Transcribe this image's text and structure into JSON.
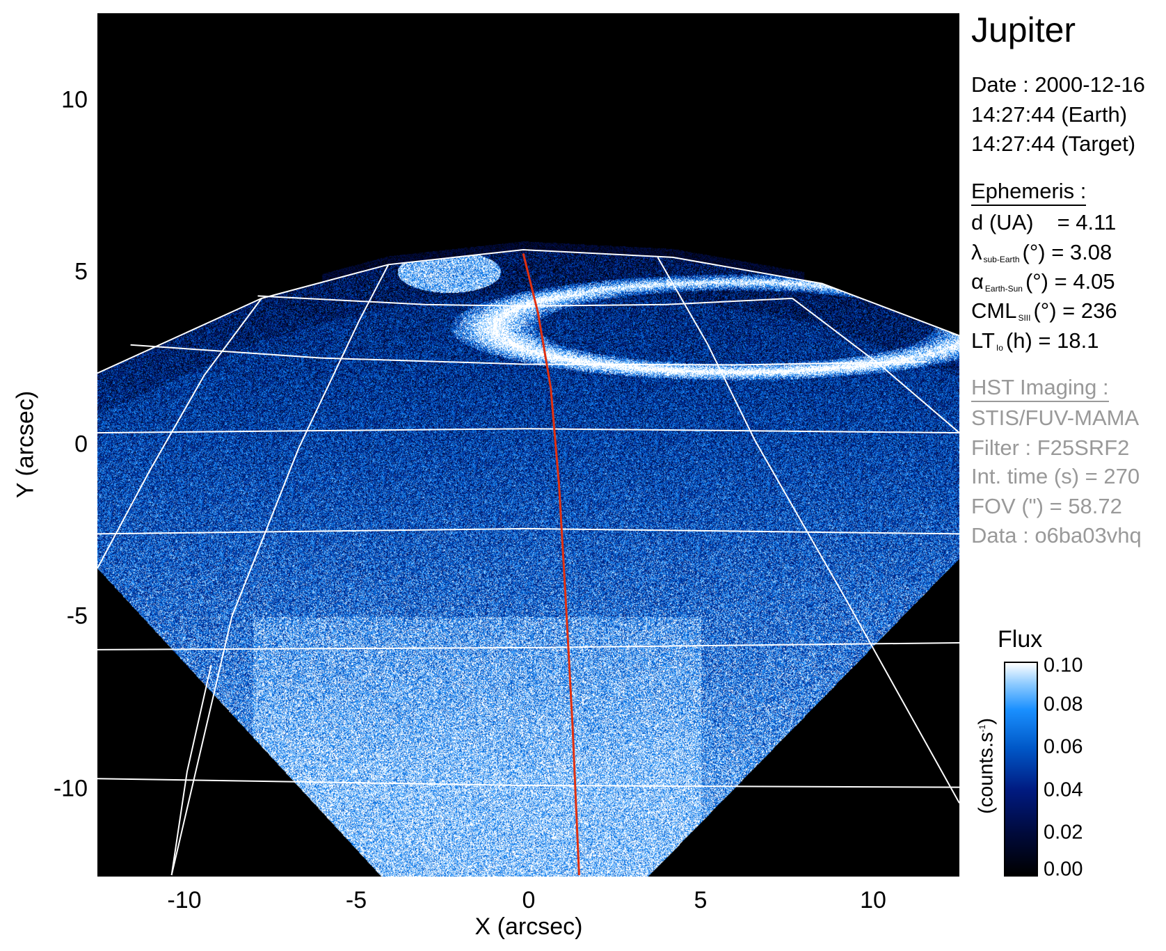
{
  "chart_data": {
    "type": "heatmap",
    "xlabel": "X (arcsec)",
    "ylabel": "Y (arcsec)",
    "xlim": [
      -12.5,
      12.5
    ],
    "ylim": [
      -12.5,
      12.5
    ],
    "x_ticks": [
      "-10",
      "-5",
      "0",
      "5",
      "10"
    ],
    "y_ticks": [
      "10",
      "5",
      "0",
      "-5",
      "-10"
    ],
    "x_tick_values": [
      -10,
      -5,
      0,
      5,
      10
    ],
    "y_tick_values": [
      10,
      5,
      0,
      -5,
      -10
    ],
    "colorbar": {
      "title": "Flux",
      "label": "(counts.s",
      "label_sup": "-1",
      "label_end": ")",
      "range": [
        0.0,
        0.1
      ],
      "ticks": [
        "0.10",
        "0.08",
        "0.06",
        "0.04",
        "0.02",
        "0.00"
      ],
      "tick_values": [
        0.1,
        0.08,
        0.06,
        0.04,
        0.02,
        0.0
      ],
      "colormap": [
        "#000000",
        "#000a3c",
        "#001a80",
        "#0058c8",
        "#1a90ff",
        "#8ccaff",
        "#ffffff"
      ]
    },
    "overlay_colors": {
      "grid": "#ffffff",
      "central_meridian": "#e03010"
    }
  },
  "info": {
    "target": "Jupiter",
    "date": "Date : 2000-12-16",
    "time_earth": "14:27:44 (Earth)",
    "time_target": "14:27:44 (Target)",
    "ephemeris_title": "Ephemeris :",
    "d": {
      "label": "d (UA)",
      "value": "= 4.11"
    },
    "lambda": {
      "sym": "λ",
      "sub": "sub-Earth",
      "rest": "(°) = 3.08"
    },
    "alpha": {
      "sym": "α",
      "sub": "Earth-Sun",
      "rest": "(°) = 4.05"
    },
    "cml": {
      "sym": "CML",
      "sub": "SIII",
      "rest": "(°) = 236"
    },
    "lt": {
      "sym": "LT",
      "sub": "Io",
      "rest": "(h) = 18.1"
    },
    "hst_title": "HST Imaging :",
    "instrument": "STIS/FUV-MAMA",
    "filter": "Filter : F25SRF2",
    "int_time": "Int. time (s) = 270",
    "fov": "FOV (\") = 58.72",
    "data": "Data : o6ba03vhq"
  }
}
